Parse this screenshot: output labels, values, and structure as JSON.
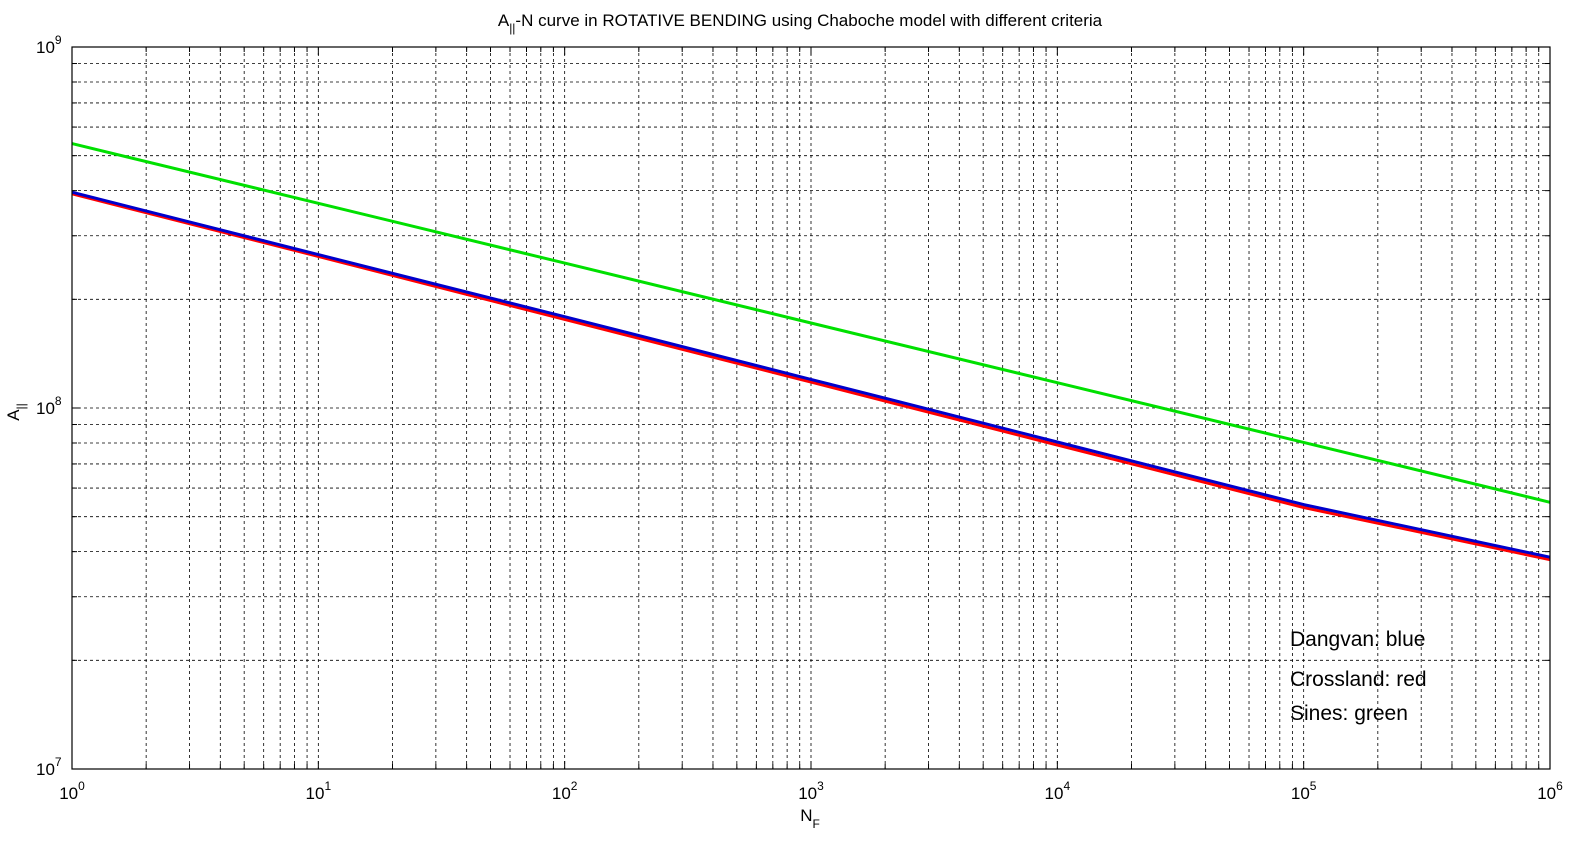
{
  "chart_data": {
    "type": "line",
    "title": {
      "main": "A",
      "sub": "||",
      "rest": "-N curve in ROTATIVE BENDING using Chaboche model with different criteria"
    },
    "xlabel": {
      "main": "N",
      "sub": "F"
    },
    "ylabel": {
      "main": "A",
      "sub": "||"
    },
    "x_scale": "log",
    "y_scale": "log",
    "xlim": [
      1,
      1000000
    ],
    "ylim": [
      10000000,
      1000000000
    ],
    "x_ticks": [
      {
        "base": "10",
        "exp": "0"
      },
      {
        "base": "10",
        "exp": "1"
      },
      {
        "base": "10",
        "exp": "2"
      },
      {
        "base": "10",
        "exp": "3"
      },
      {
        "base": "10",
        "exp": "4"
      },
      {
        "base": "10",
        "exp": "5"
      },
      {
        "base": "10",
        "exp": "6"
      }
    ],
    "y_ticks": [
      {
        "base": "10",
        "exp": "7"
      },
      {
        "base": "10",
        "exp": "8"
      },
      {
        "base": "10",
        "exp": "9"
      }
    ],
    "grid": true,
    "series": [
      {
        "color": "#00e000",
        "x": [
          1,
          10,
          100,
          1000,
          10000,
          100000,
          1000000
        ],
        "y": [
          540000000,
          369000000,
          252000000,
          172000000,
          117500000,
          80300000,
          54800000
        ]
      },
      {
        "color": "#ff0000",
        "x": [
          1,
          10,
          100,
          1000,
          10000,
          100000,
          1000000
        ],
        "y": [
          392000000,
          263000000,
          176000000,
          118000000,
          79000000,
          53000000,
          38000000
        ]
      },
      {
        "color": "#0000cc",
        "x": [
          1,
          10,
          100,
          1000,
          10000,
          100000,
          1000000
        ],
        "y": [
          396000000,
          266000000,
          179000000,
          120000000,
          80500000,
          54000000,
          38600000
        ]
      }
    ],
    "annotations": [
      "Dangvan: blue",
      "Crossland: red",
      "Sines: green"
    ]
  }
}
